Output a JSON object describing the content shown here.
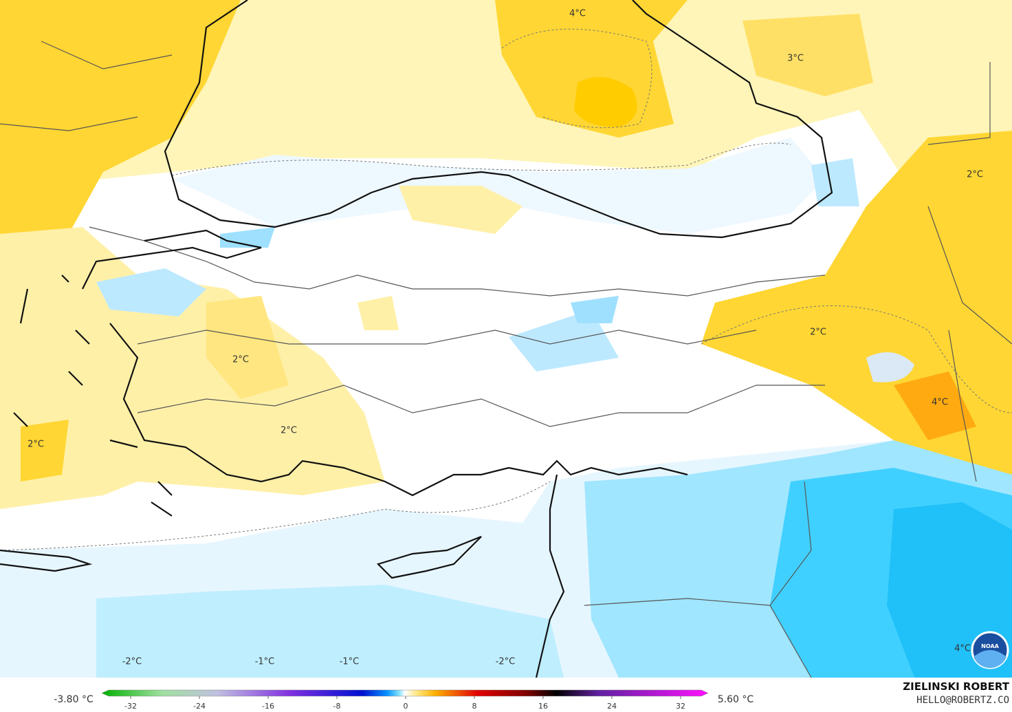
{
  "map": {
    "contour_labels": [
      "4°C",
      "3°C",
      "2°C",
      "2°C",
      "4°C",
      "2°C",
      "2°C",
      "2°C",
      "-2°C",
      "-1°C",
      "-1°C",
      "-2°C",
      "4°C"
    ],
    "legend": {
      "min_label": "-3.80 °C",
      "max_label": "5.60 °C",
      "ticks": [
        -32,
        -24,
        -16,
        -8,
        0,
        8,
        16,
        24,
        32
      ]
    },
    "credit": {
      "author": "ZIELINSKI ROBERT",
      "contact": "HELLO@ROBERTZ.CO",
      "logo": "NOAA"
    }
  }
}
